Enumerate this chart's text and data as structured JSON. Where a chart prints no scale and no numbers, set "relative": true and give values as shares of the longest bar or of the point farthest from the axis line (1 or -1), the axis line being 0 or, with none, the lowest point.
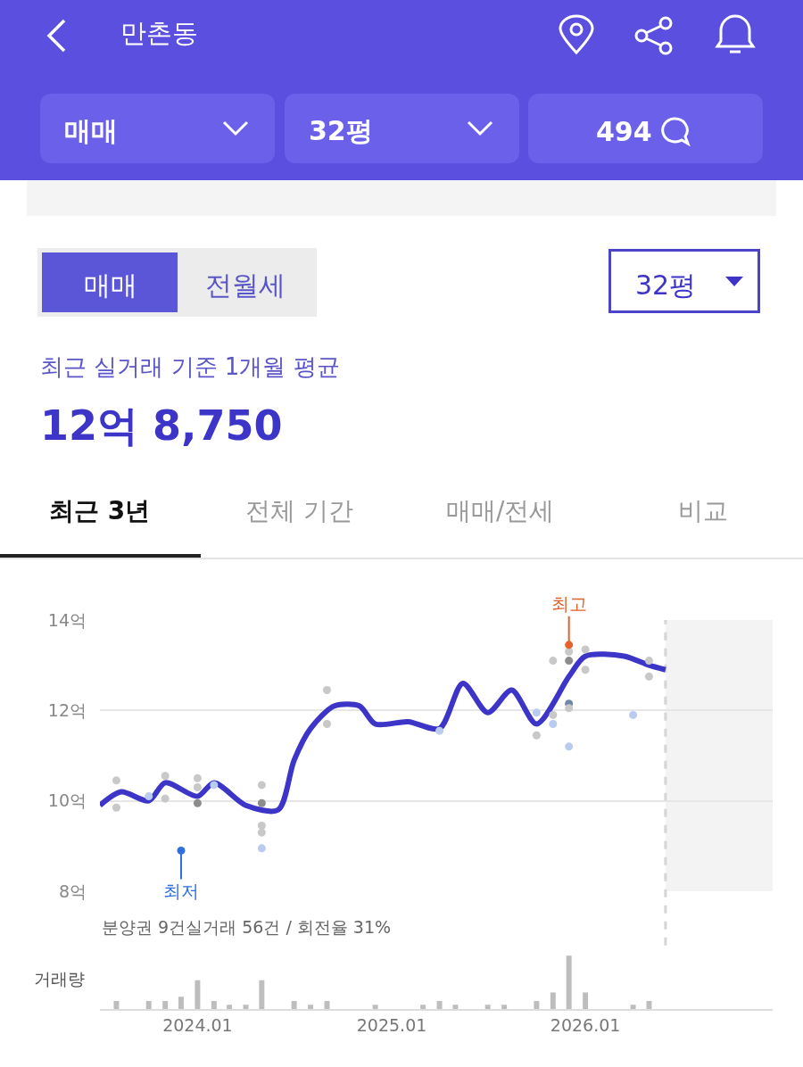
{
  "chart_data": [
    {
      "type": "other",
      "annotations": [
        "만촌동",
        "매매",
        "32평",
        "494",
        "매매",
        "전월세",
        "32평",
        "최근 실거래 기준 1개월 평균",
        "12억 8,750",
        "최근 3년",
        "전체 기간",
        "매매/전세",
        "비교"
      ]
    },
    {
      "type": "line",
      "xlim": [
        "2023-07-01",
        "2026-12-20"
      ],
      "ylim": [
        8,
        14
      ],
      "yticks": [
        {
          "value": 8,
          "label": "8억"
        },
        {
          "value": 10,
          "label": "10억"
        },
        {
          "value": 12,
          "label": "12억"
        },
        {
          "value": 14,
          "label": "14억"
        }
      ],
      "tick_labels": "y",
      "grid": "y",
      "marker": "none",
      "line_style": "solid",
      "series": [
        {
          "type": "line",
          "color": "#3d35c8",
          "x": [
            "2023-07-01",
            "2023-08-10",
            "2023-10-01",
            "2023-11-01",
            "2024-01-01",
            "2024-02-01",
            "2024-04-01",
            "2024-06-01",
            "2024-07-01",
            "2024-08-01",
            "2024-09-15",
            "2024-11-01",
            "2024-12-01",
            "2025-02-01",
            "2025-04-01",
            "2025-05-15",
            "2025-07-01",
            "2025-08-15",
            "2025-10-01",
            "2025-12-01",
            "2026-01-01",
            "2026-03-15",
            "2026-05-01",
            "2026-06-01"
          ],
          "values": [
            9.9,
            10.2,
            10.0,
            10.4,
            10.1,
            10.4,
            9.9,
            9.8,
            10.9,
            11.6,
            12.1,
            12.1,
            11.7,
            11.75,
            11.6,
            12.6,
            11.95,
            12.45,
            11.7,
            12.75,
            13.2,
            13.2,
            13.0,
            12.9
          ]
        },
        {
          "type": "scatter",
          "marker": "circle",
          "x": [
            "2023-08-01",
            "2023-08-01",
            "2023-10-01",
            "2023-11-01",
            "2023-11-01",
            "2024-01-01",
            "2024-01-01",
            "2024-01-01",
            "2024-02-01",
            "2024-05-01",
            "2024-05-01",
            "2024-05-01",
            "2024-05-01",
            "2024-05-01",
            "2024-09-01",
            "2024-09-01",
            "2025-04-01",
            "2025-10-01",
            "2025-10-01",
            "2025-11-01",
            "2025-11-01",
            "2025-11-01",
            "2025-12-01",
            "2025-12-01",
            "2025-12-01",
            "2025-12-01",
            "2025-12-01",
            "2026-01-01",
            "2026-01-01",
            "2026-04-01",
            "2026-05-01",
            "2026-05-01",
            "2023-12-01",
            "2025-12-01"
          ],
          "values": [
            10.45,
            9.85,
            10.1,
            10.55,
            10.05,
            10.5,
            10.3,
            9.95,
            10.35,
            10.35,
            9.95,
            9.45,
            9.3,
            8.95,
            12.45,
            11.7,
            11.55,
            11.45,
            11.95,
            13.1,
            11.9,
            11.7,
            13.3,
            13.1,
            12.15,
            12.05,
            11.2,
            13.35,
            12.9,
            11.9,
            13.1,
            12.75,
            8.9,
            13.45
          ],
          "colors": [
            "#c8c8c8",
            "#c8c8c8",
            "#b9cbee",
            "#c8c8c8",
            "#c8c8c8",
            "#c8c8c8",
            "#c8c8c8",
            "#8c8c8c",
            "#b9cbee",
            "#c8c8c8",
            "#8c8c8c",
            "#c8c8c8",
            "#c8c8c8",
            "#b9cbee",
            "#c8c8c8",
            "#c8c8c8",
            "#b9cbee",
            "#c8c8c8",
            "#b9cbee",
            "#c8c8c8",
            "#c8c8c8",
            "#b9cbee",
            "#c8c8c8",
            "#8c8c8c",
            "#6f88a8",
            "#c8c8c8",
            "#b9cbee",
            "#c8c8c8",
            "#c8c8c8",
            "#b9cbee",
            "#c8c8c8",
            "#c8c8c8",
            "#2f6fe0",
            "#e8622c"
          ]
        }
      ],
      "annotations": [
        {
          "text": "최저",
          "x": "2023-12-01",
          "y": 8.9
        },
        {
          "text": "최고",
          "x": "2025-12-01",
          "y": 13.45
        },
        "분양권 9건실거래 56건 / 회전율 31%"
      ],
      "ref_lines": [
        {
          "axis": "x",
          "value": "2026-06-01",
          "color": "#d5d5d5",
          "line_style": "dashed"
        }
      ],
      "bands": [
        {
          "axis": "x",
          "from": "2026-06-01",
          "to": "2026-12-20",
          "color": "#f3f3f3"
        }
      ]
    },
    {
      "type": "bar",
      "relative": true,
      "ylabel": "거래량",
      "color": "#bdbdbd",
      "tick_labels": "x",
      "xlim": [
        "2023-07-01",
        "2026-12-20"
      ],
      "xticks": [
        {
          "value": "2024-01-01",
          "label": "2024.01"
        },
        {
          "value": "2025-01-01",
          "label": "2025.01"
        },
        {
          "value": "2026-01-01",
          "label": "2026.01"
        }
      ],
      "x": [
        "2023-08-01",
        "2023-10-01",
        "2023-11-01",
        "2023-12-01",
        "2024-01-01",
        "2024-02-01",
        "2024-03-01",
        "2024-04-01",
        "2024-05-01",
        "2024-07-01",
        "2024-08-01",
        "2024-09-01",
        "2024-12-01",
        "2025-03-01",
        "2025-04-01",
        "2025-05-01",
        "2025-07-01",
        "2025-08-01",
        "2025-10-01",
        "2025-11-01",
        "2025-12-01",
        "2026-01-01",
        "2026-04-01",
        "2026-05-01"
      ],
      "values": [
        0.15,
        0.15,
        0.15,
        0.23,
        0.54,
        0.15,
        0.08,
        0.08,
        0.54,
        0.15,
        0.08,
        0.15,
        0.08,
        0.08,
        0.15,
        0.08,
        0.08,
        0.08,
        0.15,
        0.31,
        1,
        0.31,
        0.08,
        0.15
      ]
    }
  ]
}
